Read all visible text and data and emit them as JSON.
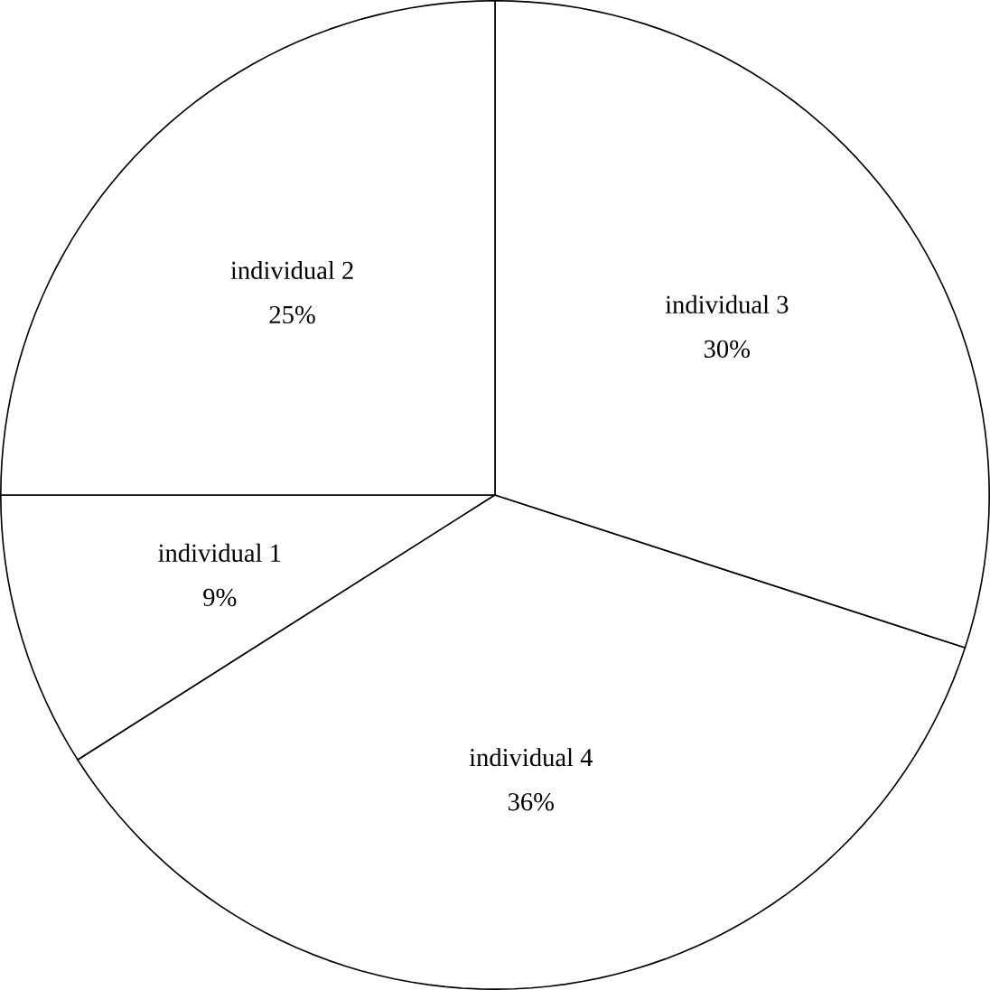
{
  "chart_data": {
    "type": "pie",
    "categories": [
      "individual 1",
      "individual 4",
      "individual 3",
      "individual 2"
    ],
    "values": [
      9,
      36,
      30,
      25
    ],
    "value_labels": [
      "9%",
      "36%",
      "30%",
      "25%"
    ],
    "colors": [
      "#ffffff",
      "#ffffff",
      "#ffffff",
      "#ffffff"
    ]
  }
}
